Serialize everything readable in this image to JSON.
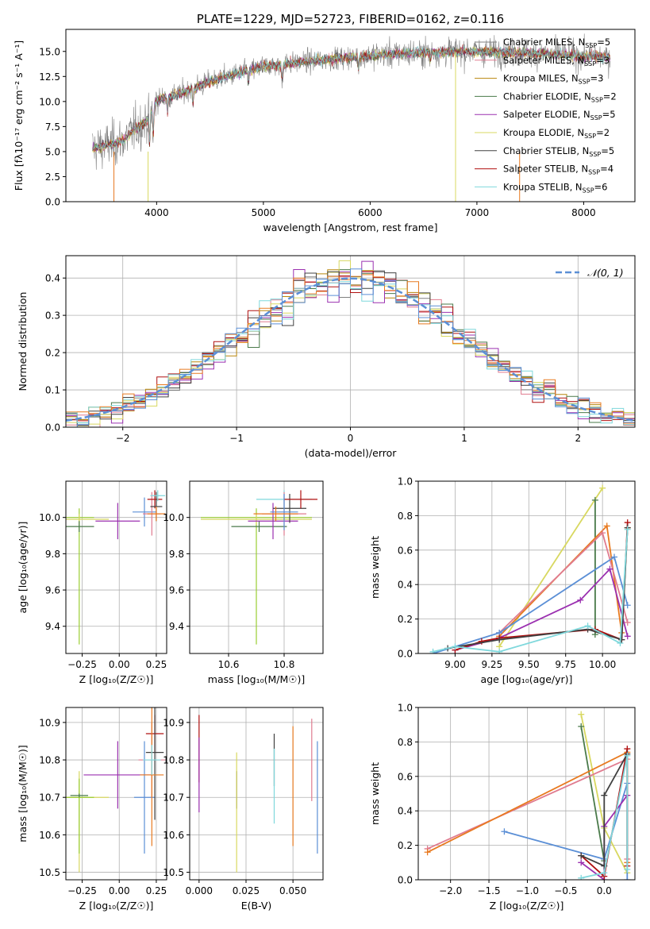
{
  "chart_data": [
    {
      "type": "line",
      "title": "PLATE=1229, MJD=52723, FIBERID=0162, z=0.116",
      "xlabel": "wavelength [Angstrom, rest frame]",
      "ylabel": "Flux [fλ10⁻¹⁷ erg cm⁻² s⁻¹ A⁻¹]",
      "xlim": [
        3150,
        8480
      ],
      "ylim": [
        0,
        17.2
      ],
      "xticks": [
        "4000",
        "5000",
        "6000",
        "7000",
        "8000"
      ],
      "yticks": [
        "0.0",
        "2.5",
        "5.0",
        "7.5",
        "10.0",
        "12.5",
        "15.0"
      ],
      "legend_position": "right",
      "legend": [
        {
          "label": "Chabrier MILES, N",
          "sub": "SSP",
          "eq": "=5",
          "color": "#808080"
        },
        {
          "label": "Salpeter MILES, N",
          "sub": "SSP",
          "eq": "=3",
          "color": "#e07b8f"
        },
        {
          "label": "Kroupa MILES, N",
          "sub": "SSP",
          "eq": "=3",
          "color": "#b8860b"
        },
        {
          "label": "Chabrier ELODIE, N",
          "sub": "SSP",
          "eq": "=2",
          "color": "#4a7a4a"
        },
        {
          "label": "Salpeter ELODIE, N",
          "sub": "SSP",
          "eq": "=5",
          "color": "#9b30b0"
        },
        {
          "label": "Kroupa ELODIE, N",
          "sub": "SSP",
          "eq": "=2",
          "color": "#d8d860"
        },
        {
          "label": "Chabrier STELIB, N",
          "sub": "SSP",
          "eq": "=5",
          "color": "#404040"
        },
        {
          "label": "Salpeter STELIB, N",
          "sub": "SSP",
          "eq": "=4",
          "color": "#b01010"
        },
        {
          "label": "Kroupa STELIB, N",
          "sub": "SSP",
          "eq": "=6",
          "color": "#7fd8dc"
        }
      ],
      "continuum": {
        "x": [
          3400,
          3600,
          3700,
          3800,
          3900,
          3950,
          4000,
          4200,
          4500,
          5000,
          5500,
          6000,
          6500,
          7000,
          7400,
          8250
        ],
        "y": [
          5.3,
          5.8,
          6.2,
          7.3,
          8.0,
          9.2,
          10.1,
          10.7,
          12.0,
          13.5,
          14.1,
          14.6,
          14.9,
          15.0,
          14.9,
          14.4
        ]
      }
    },
    {
      "type": "bar",
      "xlabel": "(data-model)/error",
      "ylabel": "Normed distribution",
      "xlim": [
        -2.5,
        2.5
      ],
      "ylim": [
        0,
        0.46
      ],
      "xticks": [
        "−2",
        "−1",
        "0",
        "1",
        "2"
      ],
      "yticks": [
        "0.0",
        "0.1",
        "0.2",
        "0.3",
        "0.4"
      ],
      "bin_width": 0.1,
      "legend_position": "top-right",
      "gaussian": {
        "label": "𝒩(0, 1)",
        "color": "#5b8fd6"
      }
    },
    {
      "type": "scatter",
      "xlabel": "Z [log₁₀(Z/Z☉)]",
      "ylabel": "age  [log₁₀(age/yr)]",
      "xlim": [
        -0.36,
        0.32
      ],
      "ylim": [
        9.25,
        10.2
      ],
      "xticks": [
        "−0.25",
        "0.00",
        "0.25"
      ],
      "yticks": [
        "9.4",
        "9.6",
        "9.8",
        "10.0"
      ],
      "points": [
        {
          "x": -0.27,
          "y": 10.0,
          "xerr": 0.1,
          "yerr": [
            0.7,
            0.05
          ],
          "color": "#9acd32"
        },
        {
          "x": -0.27,
          "y": 9.99,
          "xerr": 0.2,
          "yerr": 0.03,
          "color": "#d8d860"
        },
        {
          "x": -0.27,
          "y": 9.95,
          "xerr": 0.1,
          "yerr": 0.03,
          "color": "#4a7a4a"
        },
        {
          "x": -0.01,
          "y": 9.98,
          "xerr": 0.15,
          "yerr": 0.1,
          "color": "#9b30b0"
        },
        {
          "x": 0.17,
          "y": 10.03,
          "xerr": 0.08,
          "yerr": 0.08,
          "color": "#5b8fd6"
        },
        {
          "x": 0.22,
          "y": 10.02,
          "xerr": 0.06,
          "yerr": 0.12,
          "color": "#e07b8f"
        },
        {
          "x": 0.24,
          "y": 10.1,
          "xerr": 0.05,
          "yerr": 0.05,
          "color": "#b01010"
        },
        {
          "x": 0.25,
          "y": 10.06,
          "xerr": 0.04,
          "yerr": 0.08,
          "color": "#404040"
        },
        {
          "x": 0.26,
          "y": 10.12,
          "xerr": 0.05,
          "yerr": 0.03,
          "color": "#7fd8dc"
        },
        {
          "x": 0.25,
          "y": 10.02,
          "xerr": 0.06,
          "yerr": 0.04,
          "color": "#e87a20"
        }
      ]
    },
    {
      "type": "scatter",
      "xlabel": "mass [log₁₀(M/M☉)]",
      "ylabel": "",
      "xlim": [
        10.46,
        10.94
      ],
      "ylim": [
        9.25,
        10.2
      ],
      "xticks": [
        "10.6",
        "10.8"
      ],
      "yticks": [
        "9.4",
        "9.6",
        "9.8",
        "10.0"
      ],
      "points": [
        {
          "x": 10.7,
          "y": 10.0,
          "xerr": 0.2,
          "yerr": [
            0.7,
            0.05
          ],
          "color": "#9acd32"
        },
        {
          "x": 10.7,
          "y": 9.99,
          "xerr": 0.2,
          "yerr": 0.03,
          "color": "#d8d860"
        },
        {
          "x": 10.71,
          "y": 9.95,
          "xerr": 0.1,
          "yerr": 0.03,
          "color": "#4a7a4a"
        },
        {
          "x": 10.76,
          "y": 9.98,
          "xerr": 0.09,
          "yerr": 0.1,
          "color": "#9b30b0"
        },
        {
          "x": 10.8,
          "y": 10.1,
          "xerr": 0.1,
          "yerr": 0.05,
          "color": "#7fd8dc"
        },
        {
          "x": 10.8,
          "y": 10.02,
          "xerr": 0.08,
          "yerr": 0.12,
          "color": "#e07b8f"
        },
        {
          "x": 10.82,
          "y": 10.05,
          "xerr": 0.06,
          "yerr": 0.08,
          "color": "#404040"
        },
        {
          "x": 10.86,
          "y": 10.1,
          "xerr": 0.06,
          "yerr": 0.05,
          "color": "#b01010"
        },
        {
          "x": 10.8,
          "y": 10.03,
          "xerr": 0.05,
          "yerr": 0.1,
          "color": "#5b8fd6"
        },
        {
          "x": 10.77,
          "y": 10.02,
          "xerr": 0.08,
          "yerr": 0.04,
          "color": "#e87a20"
        }
      ]
    },
    {
      "type": "line",
      "xlabel": "age  [log₁₀(age/yr)]",
      "ylabel": "mass weight",
      "xlim": [
        8.75,
        10.22
      ],
      "ylim": [
        0,
        1.0
      ],
      "xticks": [
        "9.00",
        "9.25",
        "9.50",
        "9.75",
        "10.00"
      ],
      "yticks": [
        "0.0",
        "0.2",
        "0.4",
        "0.6",
        "0.8",
        "1.0"
      ],
      "series": [
        {
          "color": "#d8d860",
          "x": [
            9.3,
            10.0
          ],
          "y": [
            0.04,
            0.96
          ]
        },
        {
          "color": "#4a7a4a",
          "x": [
            9.95,
            9.95
          ],
          "y": [
            0.89,
            0.11
          ]
        },
        {
          "color": "#e87a20",
          "x": [
            9.3,
            10.03,
            10.13,
            10.17
          ],
          "y": [
            0.1,
            0.74,
            0.12,
            0.73
          ]
        },
        {
          "color": "#e07b8f",
          "x": [
            9.3,
            10.0,
            10.17
          ],
          "y": [
            0.12,
            0.7,
            0.18
          ]
        },
        {
          "color": "#5b8fd6",
          "x": [
            8.85,
            9.3,
            10.08,
            10.17
          ],
          "y": [
            0.0,
            0.12,
            0.56,
            0.28
          ]
        },
        {
          "color": "#9b30b0",
          "x": [
            9.0,
            9.3,
            9.85,
            10.05,
            10.17
          ],
          "y": [
            0.02,
            0.09,
            0.31,
            0.49,
            0.1
          ]
        },
        {
          "color": "#b01010",
          "x": [
            9.0,
            9.18,
            9.3,
            9.95,
            10.13,
            10.17
          ],
          "y": [
            0.02,
            0.07,
            0.09,
            0.14,
            0.08,
            0.76
          ]
        },
        {
          "color": "#404040",
          "x": [
            8.95,
            9.3,
            9.9,
            10.13,
            10.17
          ],
          "y": [
            0.03,
            0.08,
            0.14,
            0.08,
            0.73
          ]
        },
        {
          "color": "#7fd8dc",
          "x": [
            8.85,
            9.0,
            9.3,
            9.9,
            10.12,
            10.17
          ],
          "y": [
            0.01,
            0.04,
            0.01,
            0.16,
            0.06,
            0.72
          ]
        }
      ]
    },
    {
      "type": "scatter",
      "xlabel": "Z [log₁₀(Z/Z☉)]",
      "ylabel": "mass [log₁₀(M/M☉)]",
      "xlim": [
        -0.36,
        0.32
      ],
      "ylim": [
        10.48,
        10.94
      ],
      "xticks": [
        "−0.25",
        "0.00",
        "0.25"
      ],
      "yticks": [
        "10.5",
        "10.6",
        "10.7",
        "10.8",
        "10.9"
      ],
      "points": [
        {
          "x": -0.27,
          "y": 10.7,
          "xerr": 0.2,
          "yerr": [
            0.2,
            0.07
          ],
          "color": "#d8d860"
        },
        {
          "x": -0.27,
          "y": 10.7,
          "xerr": 0.1,
          "yerr": [
            0.15,
            0.05
          ],
          "color": "#9acd32"
        },
        {
          "x": -0.27,
          "y": 10.705,
          "xerr": 0.06,
          "yerr": 0.005,
          "color": "#4a7a4a"
        },
        {
          "x": -0.01,
          "y": 10.76,
          "xerr": 0.23,
          "yerr": 0.09,
          "color": "#9b30b0"
        },
        {
          "x": 0.17,
          "y": 10.7,
          "xerr": 0.07,
          "yerr": 0.15,
          "color": "#5b8fd6"
        },
        {
          "x": 0.22,
          "y": 10.8,
          "xerr": 0.09,
          "yerr": 0.1,
          "color": "#e07b8f"
        },
        {
          "x": 0.24,
          "y": 10.87,
          "xerr": 0.06,
          "yerr": 0.05,
          "color": "#b01010"
        },
        {
          "x": 0.24,
          "y": 10.82,
          "xerr": 0.06,
          "yerr": 0.18,
          "color": "#404040"
        },
        {
          "x": 0.22,
          "y": 10.76,
          "xerr": 0.08,
          "yerr": 0.19,
          "color": "#e87a20"
        },
        {
          "x": 0.22,
          "y": 10.8,
          "xerr": 0.06,
          "yerr": 0.04,
          "color": "#7fd8dc"
        }
      ]
    },
    {
      "type": "scatter",
      "xlabel": "E(B-V)",
      "ylabel": "",
      "xlim": [
        -0.005,
        0.066
      ],
      "ylim": [
        10.48,
        10.94
      ],
      "xticks": [
        "0.000",
        "0.025",
        "0.050"
      ],
      "yticks": [
        "10.5",
        "10.6",
        "10.7",
        "10.8",
        "10.9"
      ],
      "points": [
        {
          "x": 0.0,
          "y": 10.83,
          "yerr": 0.09,
          "color": "#b01010"
        },
        {
          "x": 0.0,
          "y": 10.76,
          "yerr": 0.1,
          "color": "#9b30b0"
        },
        {
          "x": 0.02,
          "y": 10.72,
          "yerr": 0.05,
          "color": "#404040"
        },
        {
          "x": 0.02,
          "y": 10.66,
          "yerr": 0.16,
          "color": "#d8d860"
        },
        {
          "x": 0.04,
          "y": 10.8,
          "yerr": 0.07,
          "color": "#404040"
        },
        {
          "x": 0.04,
          "y": 10.73,
          "yerr": 0.1,
          "color": "#7fd8dc"
        },
        {
          "x": 0.05,
          "y": 10.73,
          "yerr": 0.16,
          "color": "#e87a20"
        },
        {
          "x": 0.06,
          "y": 10.8,
          "yerr": 0.11,
          "color": "#e07b8f"
        },
        {
          "x": 0.063,
          "y": 10.7,
          "yerr": 0.15,
          "color": "#5b8fd6"
        }
      ]
    },
    {
      "type": "line",
      "xlabel": "Z [log₁₀(Z/Z☉)]",
      "ylabel": "mass weight",
      "xlim": [
        -2.42,
        0.4
      ],
      "ylim": [
        0,
        1.0
      ],
      "xticks": [
        "−2.0",
        "−1.5",
        "−1.0",
        "−0.5",
        "0.0"
      ],
      "yticks": [
        "0.0",
        "0.2",
        "0.4",
        "0.6",
        "0.8",
        "1.0"
      ],
      "series": [
        {
          "color": "#d8d860",
          "x": [
            -0.3,
            0.0,
            0.3
          ],
          "y": [
            0.96,
            0.3,
            0.04
          ]
        },
        {
          "color": "#4a7a4a",
          "x": [
            -0.3,
            0.0
          ],
          "y": [
            0.89,
            0.11
          ]
        },
        {
          "color": "#e07b8f",
          "x": [
            -2.3,
            0.3,
            0.3
          ],
          "y": [
            0.18,
            0.7,
            0.12
          ]
        },
        {
          "color": "#e87a20",
          "x": [
            -2.3,
            0.3,
            0.3
          ],
          "y": [
            0.16,
            0.74,
            0.1
          ]
        },
        {
          "color": "#5b8fd6",
          "x": [
            -1.3,
            0.0,
            0.3,
            0.3
          ],
          "y": [
            0.28,
            0.12,
            0.56,
            0.0
          ]
        },
        {
          "color": "#9b30b0",
          "x": [
            -0.3,
            0.0,
            0.0,
            0.3
          ],
          "y": [
            0.1,
            0.0,
            0.31,
            0.49
          ]
        },
        {
          "color": "#b01010",
          "x": [
            -0.3,
            0.0,
            0.3,
            0.3
          ],
          "y": [
            0.14,
            0.02,
            0.76,
            0.08
          ]
        },
        {
          "color": "#404040",
          "x": [
            -0.3,
            0.0,
            0.0,
            0.3
          ],
          "y": [
            0.14,
            0.08,
            0.49,
            0.73
          ]
        },
        {
          "color": "#7fd8dc",
          "x": [
            -0.3,
            0.0,
            0.3,
            0.3
          ],
          "y": [
            0.01,
            0.04,
            0.72,
            0.06
          ]
        }
      ]
    }
  ]
}
